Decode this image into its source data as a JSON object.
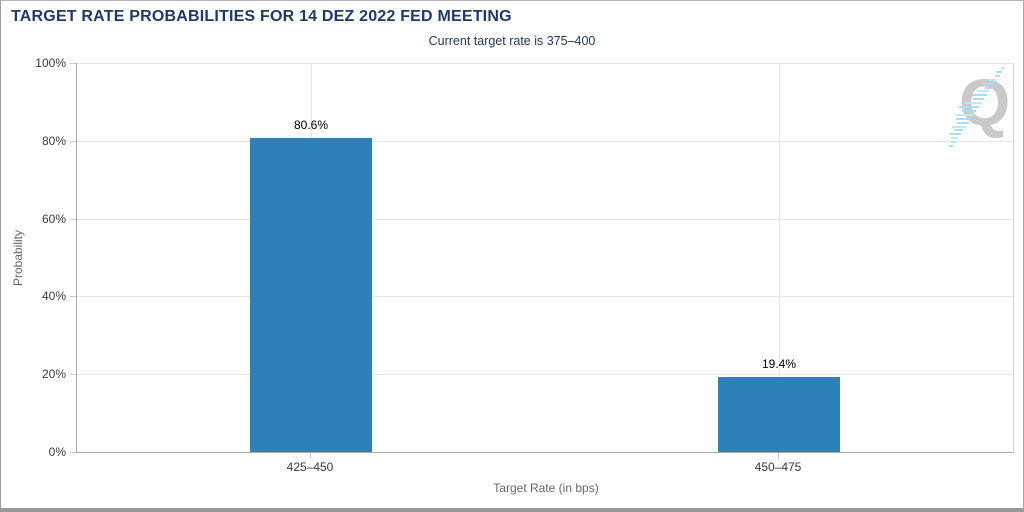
{
  "chart": {
    "title": "TARGET RATE PROBABILITIES FOR 14 DEZ 2022 FED MEETING",
    "subtitle": "Current target rate is 375–400"
  },
  "watermark": {
    "letter": "Q"
  },
  "colors": {
    "bar": "#2e80b9",
    "title_text": "#1e3a6b",
    "axis_text": "#3a3a3a",
    "axis_title_text": "#666666",
    "gridline": "#e6e6e6",
    "frame": "#999999",
    "watermark_gray": "#c9c9c9",
    "watermark_blue": "#a9dcf5"
  },
  "chart_data": {
    "type": "bar",
    "title": "TARGET RATE PROBABILITIES FOR 14 DEZ 2022 FED MEETING",
    "subtitle": "Current target rate is 375–400",
    "categories": [
      "425–450",
      "450–475"
    ],
    "values": [
      80.6,
      19.4
    ],
    "value_labels": [
      "80.6%",
      "19.4%"
    ],
    "xlabel": "Target Rate (in bps)",
    "ylabel": "Probability",
    "ylim": [
      0,
      100
    ],
    "y_ticks": [
      0,
      20,
      40,
      60,
      80,
      100
    ],
    "y_tick_labels": [
      "0%",
      "20%",
      "40%",
      "60%",
      "80%",
      "100%"
    ],
    "grid": true,
    "legend": false,
    "bar_color": "#2e80b9"
  }
}
